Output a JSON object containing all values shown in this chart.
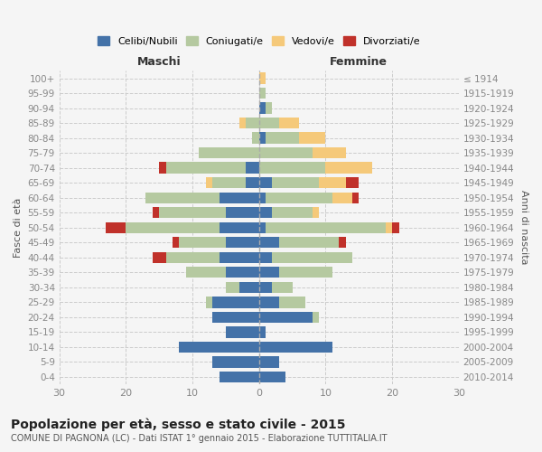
{
  "age_groups": [
    "100+",
    "95-99",
    "90-94",
    "85-89",
    "80-84",
    "75-79",
    "70-74",
    "65-69",
    "60-64",
    "55-59",
    "50-54",
    "45-49",
    "40-44",
    "35-39",
    "30-34",
    "25-29",
    "20-24",
    "15-19",
    "10-14",
    "5-9",
    "0-4"
  ],
  "birth_years": [
    "≤ 1914",
    "1915-1919",
    "1920-1924",
    "1925-1929",
    "1930-1934",
    "1935-1939",
    "1940-1944",
    "1945-1949",
    "1950-1954",
    "1955-1959",
    "1960-1964",
    "1965-1969",
    "1970-1974",
    "1975-1979",
    "1980-1984",
    "1985-1989",
    "1990-1994",
    "1995-1999",
    "2000-2004",
    "2005-2009",
    "2010-2014"
  ],
  "colors": {
    "celibe": "#4472a8",
    "coniugato": "#b5c9a0",
    "vedovo": "#f5c97a",
    "divorziato": "#c0312a"
  },
  "males": {
    "celibe": [
      0,
      0,
      0,
      0,
      0,
      0,
      2,
      2,
      6,
      5,
      6,
      5,
      6,
      5,
      3,
      7,
      7,
      5,
      12,
      7,
      6
    ],
    "coniugato": [
      0,
      0,
      0,
      2,
      1,
      9,
      12,
      5,
      11,
      10,
      14,
      7,
      8,
      6,
      2,
      1,
      0,
      0,
      0,
      0,
      0
    ],
    "vedovo": [
      0,
      0,
      0,
      1,
      0,
      0,
      0,
      1,
      0,
      0,
      0,
      0,
      0,
      0,
      0,
      0,
      0,
      0,
      0,
      0,
      0
    ],
    "divorziato": [
      0,
      0,
      0,
      0,
      0,
      0,
      1,
      0,
      0,
      1,
      3,
      1,
      2,
      0,
      0,
      0,
      0,
      0,
      0,
      0,
      0
    ]
  },
  "females": {
    "nubile": [
      0,
      0,
      1,
      0,
      1,
      0,
      0,
      2,
      1,
      2,
      1,
      3,
      2,
      3,
      2,
      3,
      8,
      1,
      11,
      3,
      4
    ],
    "coniugata": [
      0,
      1,
      1,
      3,
      5,
      8,
      10,
      7,
      10,
      6,
      18,
      9,
      12,
      8,
      3,
      4,
      1,
      0,
      0,
      0,
      0
    ],
    "vedova": [
      1,
      0,
      0,
      3,
      4,
      5,
      7,
      4,
      3,
      1,
      1,
      0,
      0,
      0,
      0,
      0,
      0,
      0,
      0,
      0,
      0
    ],
    "divorziata": [
      0,
      0,
      0,
      0,
      0,
      0,
      0,
      2,
      1,
      0,
      1,
      1,
      0,
      0,
      0,
      0,
      0,
      0,
      0,
      0,
      0
    ]
  },
  "xlim": 30,
  "title": "Popolazione per età, sesso e stato civile - 2015",
  "subtitle": "COMUNE DI PAGNONA (LC) - Dati ISTAT 1° gennaio 2015 - Elaborazione TUTTITALIA.IT",
  "ylabel_left": "Fasce di età",
  "ylabel_right": "Anni di nascita",
  "xlabel_left": "Maschi",
  "xlabel_right": "Femmine",
  "legend_labels": [
    "Celibi/Nubili",
    "Coniugati/e",
    "Vedovi/e",
    "Divorziati/e"
  ],
  "bg_color": "#f5f5f5",
  "grid_color": "#cccccc",
  "axis_label_color": "#555555",
  "tick_color": "#888888"
}
